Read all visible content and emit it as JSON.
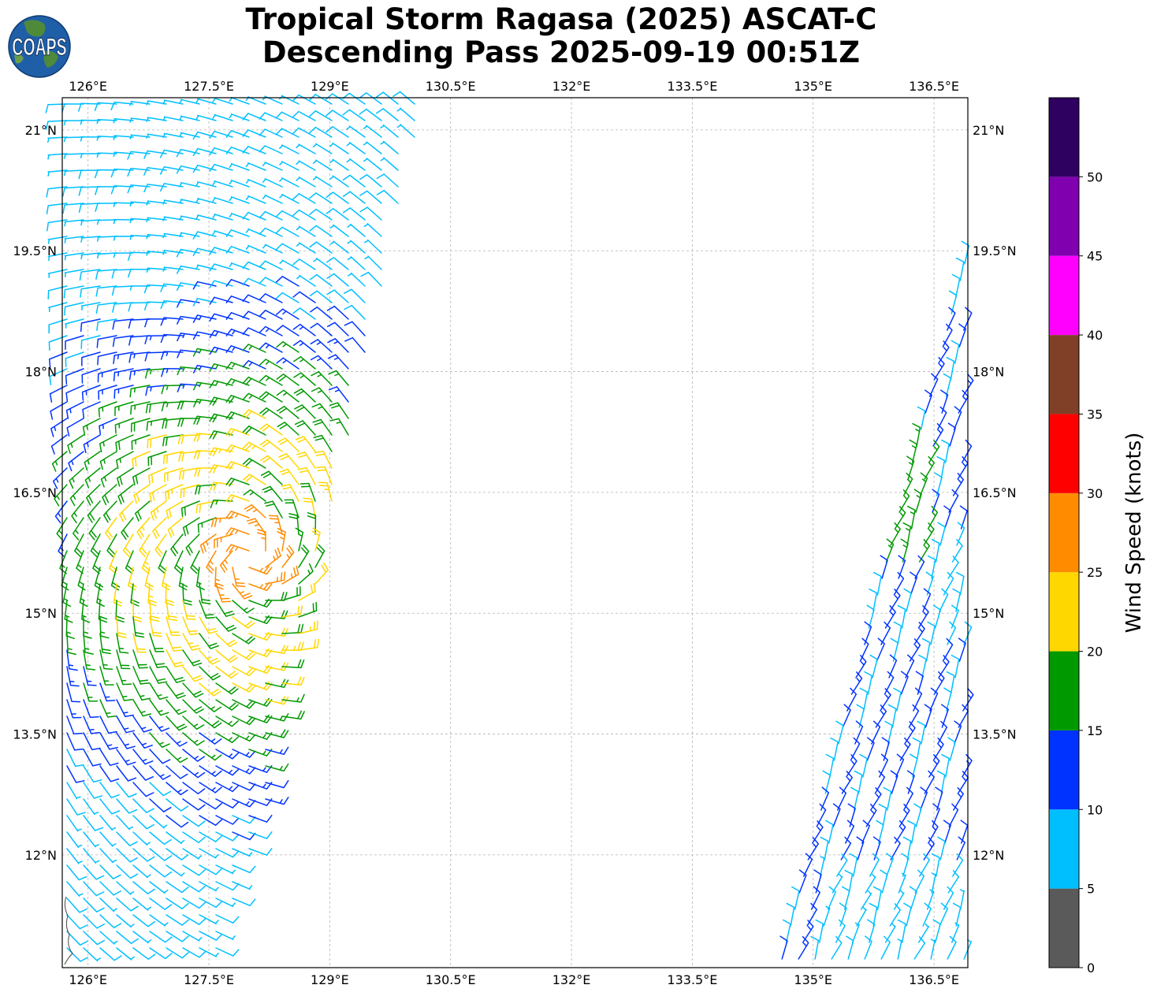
{
  "title": {
    "line1": "Tropical Storm Ragasa (2025) ASCAT-C",
    "line2": "Descending Pass 2025-09-19 00:51Z"
  },
  "logo": {
    "text": "COAPS",
    "ocean_color": "#1f5fa8",
    "land_color": "#4f8a3a"
  },
  "map": {
    "lon_ticks": [
      {
        "value": 126.0,
        "label": "126°E"
      },
      {
        "value": 127.5,
        "label": "127.5°E"
      },
      {
        "value": 129.0,
        "label": "129°E"
      },
      {
        "value": 130.5,
        "label": "130.5°E"
      },
      {
        "value": 132.0,
        "label": "132°E"
      },
      {
        "value": 133.5,
        "label": "133.5°E"
      },
      {
        "value": 135.0,
        "label": "135°E"
      },
      {
        "value": 136.5,
        "label": "136.5°E"
      }
    ],
    "lat_ticks": [
      {
        "value": 21.0,
        "label": "21°N"
      },
      {
        "value": 19.5,
        "label": "19.5°N"
      },
      {
        "value": 18.0,
        "label": "18°N"
      },
      {
        "value": 16.5,
        "label": "16.5°N"
      },
      {
        "value": 15.0,
        "label": "15°N"
      },
      {
        "value": 13.5,
        "label": "13.5°N"
      },
      {
        "value": 12.0,
        "label": "12°N"
      }
    ],
    "lon_range": [
      125.68,
      136.92
    ],
    "lat_range": [
      10.6,
      21.4
    ],
    "storm_center": {
      "lon": 128.0,
      "lat": 15.7
    },
    "grid": true,
    "gridline_color": "#b4b4b4"
  },
  "colorbar": {
    "label": "Wind Speed (knots)",
    "ticks": [
      {
        "value": 0,
        "label": "0"
      },
      {
        "value": 5,
        "label": "5"
      },
      {
        "value": 10,
        "label": "10"
      },
      {
        "value": 15,
        "label": "15"
      },
      {
        "value": 20,
        "label": "20"
      },
      {
        "value": 25,
        "label": "25"
      },
      {
        "value": 30,
        "label": "30"
      },
      {
        "value": 35,
        "label": "35"
      },
      {
        "value": 40,
        "label": "40"
      },
      {
        "value": 45,
        "label": "45"
      },
      {
        "value": 50,
        "label": "50"
      }
    ],
    "bins": [
      {
        "min": 0,
        "max": 5,
        "color": "#5a5a5a"
      },
      {
        "min": 5,
        "max": 10,
        "color": "#00bfff"
      },
      {
        "min": 10,
        "max": 15,
        "color": "#0033ff"
      },
      {
        "min": 15,
        "max": 20,
        "color": "#009900"
      },
      {
        "min": 20,
        "max": 25,
        "color": "#ffd700"
      },
      {
        "min": 25,
        "max": 30,
        "color": "#ff8c00"
      },
      {
        "min": 30,
        "max": 35,
        "color": "#ff0000"
      },
      {
        "min": 35,
        "max": 40,
        "color": "#804028"
      },
      {
        "min": 40,
        "max": 45,
        "color": "#ff00ff"
      },
      {
        "min": 45,
        "max": 50,
        "color": "#8000b0"
      },
      {
        "min": 50,
        "max": 55,
        "color": "#2e0060"
      }
    ]
  }
}
